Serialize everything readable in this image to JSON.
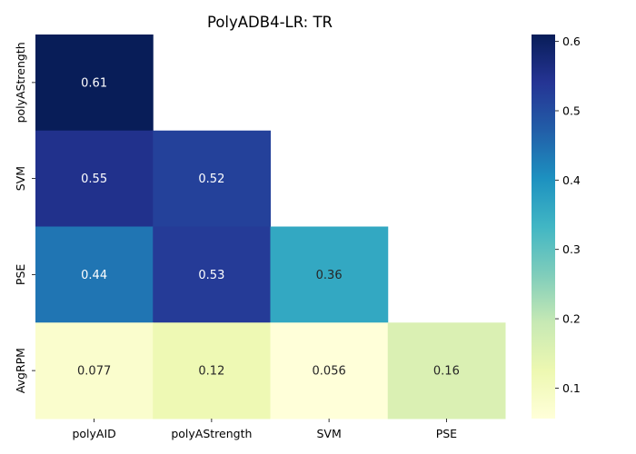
{
  "chart_data": {
    "type": "heatmap",
    "title": "PolyADB4-LR: TR",
    "xlabel": "",
    "ylabel": "",
    "x_categories": [
      "polyAID",
      "polyAStrength",
      "SVM",
      "PSE"
    ],
    "y_categories": [
      "polyAStrength",
      "SVM",
      "PSE",
      "AvgRPM"
    ],
    "cells": [
      {
        "row": 0,
        "col": 0,
        "value": 0.61,
        "label": "0.61"
      },
      {
        "row": 1,
        "col": 0,
        "value": 0.55,
        "label": "0.55"
      },
      {
        "row": 1,
        "col": 1,
        "value": 0.52,
        "label": "0.52"
      },
      {
        "row": 2,
        "col": 0,
        "value": 0.44,
        "label": "0.44"
      },
      {
        "row": 2,
        "col": 1,
        "value": 0.53,
        "label": "0.53"
      },
      {
        "row": 2,
        "col": 2,
        "value": 0.36,
        "label": "0.36"
      },
      {
        "row": 3,
        "col": 0,
        "value": 0.077,
        "label": "0.077"
      },
      {
        "row": 3,
        "col": 1,
        "value": 0.12,
        "label": "0.12"
      },
      {
        "row": 3,
        "col": 2,
        "value": 0.056,
        "label": "0.056"
      },
      {
        "row": 3,
        "col": 3,
        "value": 0.16,
        "label": "0.16"
      }
    ],
    "colormap": "YlGnBu",
    "vmin": 0.056,
    "vmax": 0.61,
    "colorbar_ticks": [
      0.1,
      0.2,
      0.3,
      0.4,
      0.5,
      0.6
    ],
    "colorbar_tick_labels": [
      "0.1",
      "0.2",
      "0.3",
      "0.4",
      "0.5",
      "0.6"
    ],
    "grid": false,
    "legend": "colorbar-right"
  }
}
